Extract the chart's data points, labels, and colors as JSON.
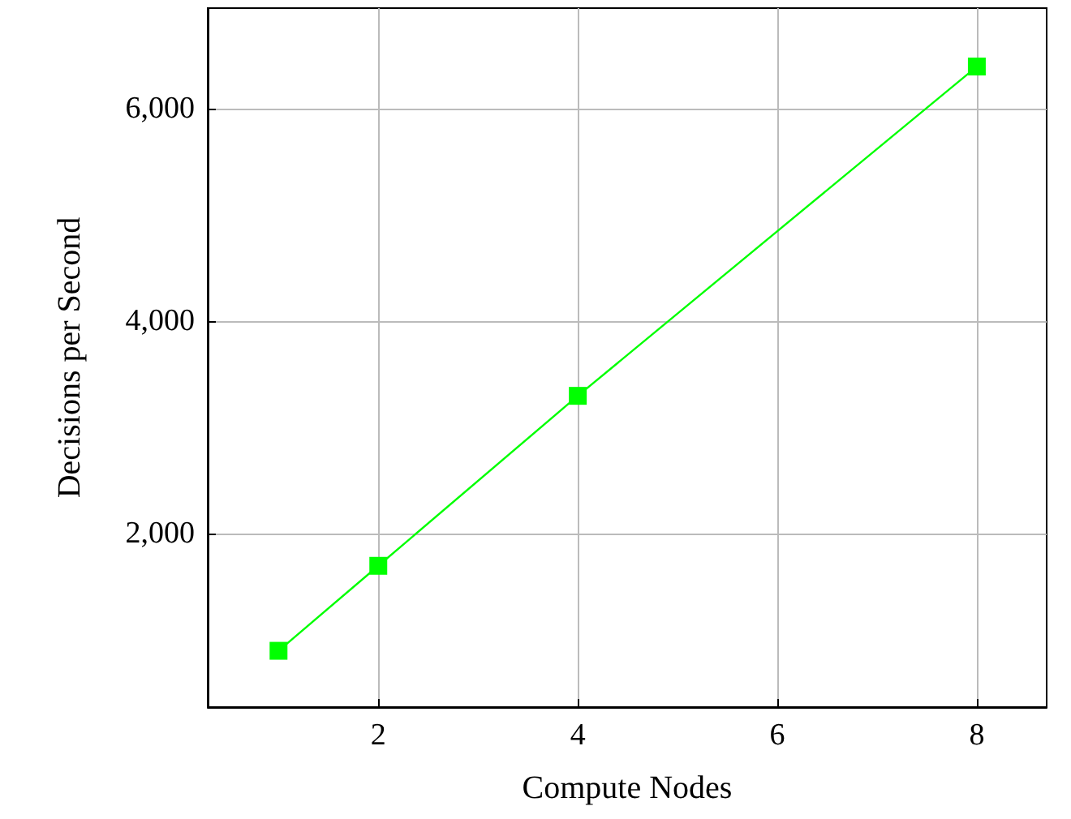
{
  "chart_data": {
    "type": "line",
    "xlabel": "Compute Nodes",
    "ylabel": "Decisions per Second",
    "x": [
      1,
      2,
      4,
      8
    ],
    "series": [
      {
        "color": "#00ff00",
        "values": [
          900,
          1700,
          3300,
          6400
        ]
      }
    ],
    "xlim": [
      0.29,
      8.7
    ],
    "xticks": [
      2,
      4,
      6,
      8
    ],
    "ylim": [
      370,
      6950
    ],
    "yticks": [
      {
        "value": 2000,
        "label": "2,000"
      },
      {
        "value": 4000,
        "label": "4,000"
      },
      {
        "value": 6000,
        "label": "6,000"
      }
    ],
    "grid": true,
    "marker": "square",
    "line_style": "solid"
  }
}
